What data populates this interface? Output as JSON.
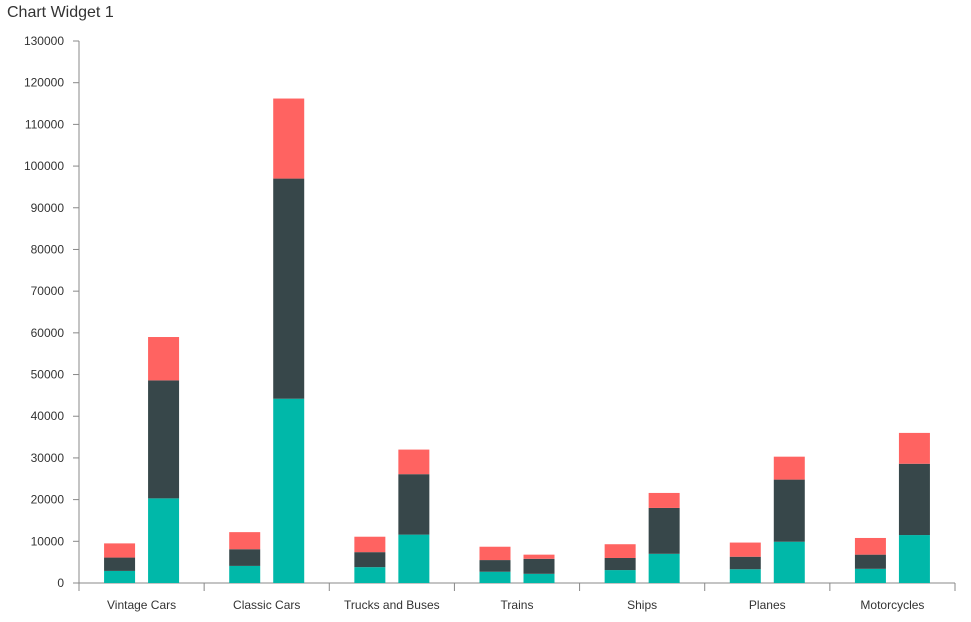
{
  "widget": {
    "title": "Chart Widget 1"
  },
  "colors": {
    "bottom": "#00b8a9",
    "middle": "#37474a",
    "top": "#ff6361",
    "axis": "#888888"
  },
  "chart_data": {
    "type": "bar",
    "stacked": true,
    "grouped": true,
    "title": "",
    "xlabel": "",
    "ylabel": "",
    "ylim": [
      0,
      130000
    ],
    "yticks": [
      0,
      10000,
      20000,
      30000,
      40000,
      50000,
      60000,
      70000,
      80000,
      90000,
      100000,
      110000,
      120000,
      130000
    ],
    "grid": false,
    "categories": [
      "Vintage Cars",
      "Classic Cars",
      "Trucks and Buses",
      "Trains",
      "Ships",
      "Planes",
      "Motorcycles"
    ],
    "groups": [
      {
        "bars": [
          {
            "segments": [
              2900,
              3200,
              3400
            ]
          },
          {
            "segments": [
              20300,
              28300,
              10400
            ]
          }
        ]
      },
      {
        "bars": [
          {
            "segments": [
              4100,
              4000,
              4100
            ]
          },
          {
            "segments": [
              44200,
              52800,
              19200
            ]
          }
        ]
      },
      {
        "bars": [
          {
            "segments": [
              3800,
              3600,
              3700
            ]
          },
          {
            "segments": [
              11600,
              14500,
              5900
            ]
          }
        ]
      },
      {
        "bars": [
          {
            "segments": [
              2700,
              2800,
              3200
            ]
          },
          {
            "segments": [
              2200,
              3600,
              1000
            ]
          }
        ]
      },
      {
        "bars": [
          {
            "segments": [
              3100,
              2900,
              3300
            ]
          },
          {
            "segments": [
              7000,
              11000,
              3600
            ]
          }
        ]
      },
      {
        "bars": [
          {
            "segments": [
              3300,
              3000,
              3400
            ]
          },
          {
            "segments": [
              9900,
              14900,
              5500
            ]
          }
        ]
      },
      {
        "bars": [
          {
            "segments": [
              3400,
              3400,
              4000
            ]
          },
          {
            "segments": [
              11500,
              17100,
              7400
            ]
          }
        ]
      }
    ]
  }
}
